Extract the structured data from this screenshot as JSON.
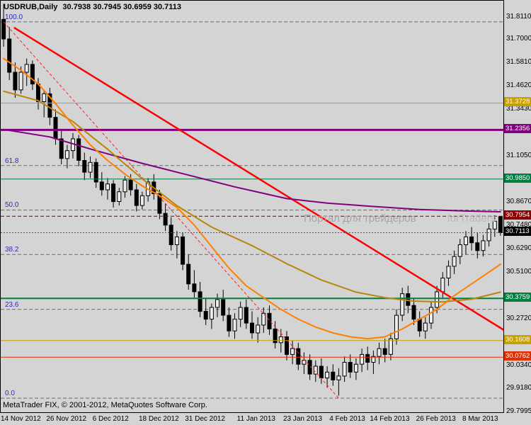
{
  "header": {
    "symbol": "USDRUB,Daily",
    "ohlc": "30.7938 30.7945 30.6959 30.7113"
  },
  "watermark": {
    "line1": "Портал для трейдеров",
    "line2": "forTraders"
  },
  "footer": {
    "copyright": "MetaTrader FIX, © 2001-2012, MetaQuotes Software Corp."
  },
  "chart_data": {
    "type": "candlestick",
    "title": "USDRUB,Daily",
    "symbol": "USDRUB",
    "timeframe": "Daily",
    "ohlc_header": {
      "open": 30.7938,
      "high": 30.7945,
      "low": 30.6959,
      "close": 30.7113
    },
    "ylim": [
      29.795,
      31.895
    ],
    "grid": false,
    "colors": {
      "background": "#D4D4D4",
      "candle_border": "#000000",
      "bull_body": "#EDEDED",
      "bear_body": "#000000",
      "fib_line": "#6B6B6B",
      "fib_label": "#2929CC",
      "current_price_line": "#555555"
    },
    "y_ticks": [
      "31.8110",
      "31.7000",
      "31.5810",
      "31.4620",
      "31.3430",
      "31.1050",
      "30.8670",
      "30.7480",
      "30.6290",
      "30.5100",
      "30.2720",
      "30.0340",
      "29.9180",
      "29.7995"
    ],
    "x_labels": [
      {
        "index": 0,
        "label": "14 Nov 2012"
      },
      {
        "index": 8,
        "label": "26 Nov 2012"
      },
      {
        "index": 16,
        "label": "6 Dec 2012"
      },
      {
        "index": 24,
        "label": "18 Dec 2012"
      },
      {
        "index": 32,
        "label": "31 Dec 2012"
      },
      {
        "index": 41,
        "label": "11 Jan 2013"
      },
      {
        "index": 49,
        "label": "23 Jan 2013"
      },
      {
        "index": 57,
        "label": "4 Feb 2013"
      },
      {
        "index": 64,
        "label": "14 Feb 2013"
      },
      {
        "index": 72,
        "label": "26 Feb 2013"
      },
      {
        "index": 80,
        "label": "8 Mar 2013"
      }
    ],
    "candles": [
      [
        31.8,
        31.88,
        31.66,
        31.7
      ],
      [
        31.7,
        31.76,
        31.49,
        31.53
      ],
      [
        31.53,
        31.58,
        31.4,
        31.44
      ],
      [
        31.44,
        31.56,
        31.42,
        31.53
      ],
      [
        31.53,
        31.6,
        31.46,
        31.57
      ],
      [
        31.57,
        31.59,
        31.44,
        31.47
      ],
      [
        31.47,
        31.5,
        31.34,
        31.38
      ],
      [
        31.38,
        31.44,
        31.3,
        31.42
      ],
      [
        31.42,
        31.45,
        31.26,
        31.3
      ],
      [
        31.3,
        31.34,
        31.16,
        31.19
      ],
      [
        31.19,
        31.24,
        31.06,
        31.09
      ],
      [
        31.09,
        31.16,
        31.04,
        31.13
      ],
      [
        31.13,
        31.22,
        31.09,
        31.19
      ],
      [
        31.19,
        31.21,
        31.05,
        31.08
      ],
      [
        31.08,
        31.12,
        30.98,
        31.02
      ],
      [
        31.02,
        31.1,
        30.99,
        31.07
      ],
      [
        31.07,
        31.09,
        30.94,
        30.97
      ],
      [
        30.97,
        31.02,
        30.9,
        30.93
      ],
      [
        30.93,
        30.99,
        30.88,
        30.96
      ],
      [
        30.96,
        30.98,
        30.84,
        30.87
      ],
      [
        30.87,
        30.94,
        30.85,
        30.92
      ],
      [
        30.92,
        31.0,
        30.89,
        30.98
      ],
      [
        30.98,
        31.01,
        30.9,
        30.93
      ],
      [
        30.93,
        30.96,
        30.82,
        30.85
      ],
      [
        30.85,
        30.92,
        30.83,
        30.9
      ],
      [
        30.9,
        30.99,
        30.87,
        30.97
      ],
      [
        30.97,
        31.01,
        30.88,
        30.91
      ],
      [
        30.91,
        30.93,
        30.78,
        30.81
      ],
      [
        30.81,
        30.86,
        30.72,
        30.75
      ],
      [
        30.75,
        30.79,
        30.62,
        30.65
      ],
      [
        30.65,
        30.72,
        30.58,
        30.69
      ],
      [
        30.69,
        30.71,
        30.52,
        30.55
      ],
      [
        30.55,
        30.6,
        30.42,
        30.45
      ],
      [
        30.45,
        30.52,
        30.38,
        30.41
      ],
      [
        30.41,
        30.46,
        30.28,
        30.31
      ],
      [
        30.31,
        30.38,
        30.24,
        30.27
      ],
      [
        30.27,
        30.35,
        30.22,
        30.33
      ],
      [
        30.33,
        30.4,
        30.28,
        30.37
      ],
      [
        30.37,
        30.42,
        30.26,
        30.29
      ],
      [
        30.29,
        30.33,
        30.18,
        30.21
      ],
      [
        30.21,
        30.3,
        30.17,
        30.27
      ],
      [
        30.27,
        30.36,
        30.23,
        30.33
      ],
      [
        30.33,
        30.37,
        30.22,
        30.25
      ],
      [
        30.25,
        30.31,
        30.17,
        30.2
      ],
      [
        30.2,
        30.28,
        30.15,
        30.24
      ],
      [
        30.24,
        30.33,
        30.2,
        30.3
      ],
      [
        30.3,
        30.34,
        30.19,
        30.22
      ],
      [
        30.22,
        30.26,
        30.12,
        30.15
      ],
      [
        30.15,
        30.22,
        30.1,
        30.18
      ],
      [
        30.18,
        30.21,
        30.06,
        30.09
      ],
      [
        30.09,
        30.16,
        30.04,
        30.12
      ],
      [
        30.12,
        30.15,
        30.01,
        30.04
      ],
      [
        30.04,
        30.1,
        29.99,
        30.06
      ],
      [
        30.06,
        30.09,
        29.96,
        29.99
      ],
      [
        29.99,
        30.06,
        29.95,
        30.03
      ],
      [
        30.03,
        30.07,
        29.94,
        29.97
      ],
      [
        29.97,
        30.03,
        29.92,
        30.0
      ],
      [
        30.0,
        30.04,
        29.93,
        29.96
      ],
      [
        29.96,
        30.02,
        29.88,
        29.98
      ],
      [
        29.98,
        30.08,
        29.95,
        30.05
      ],
      [
        30.05,
        30.09,
        29.97,
        30.0
      ],
      [
        30.0,
        30.07,
        29.96,
        30.04
      ],
      [
        30.04,
        30.12,
        30.0,
        30.09
      ],
      [
        30.09,
        30.13,
        30.01,
        30.05
      ],
      [
        30.05,
        30.11,
        29.99,
        30.08
      ],
      [
        30.08,
        30.15,
        30.04,
        30.12
      ],
      [
        30.12,
        30.17,
        30.05,
        30.09
      ],
      [
        30.09,
        30.2,
        30.06,
        30.17
      ],
      [
        30.17,
        30.32,
        30.14,
        30.29
      ],
      [
        30.29,
        30.43,
        30.26,
        30.4
      ],
      [
        30.4,
        30.44,
        30.3,
        30.34
      ],
      [
        30.34,
        30.38,
        30.24,
        30.27
      ],
      [
        30.27,
        30.31,
        30.18,
        30.21
      ],
      [
        30.21,
        30.28,
        30.17,
        30.25
      ],
      [
        30.25,
        30.36,
        30.22,
        30.33
      ],
      [
        30.33,
        30.44,
        30.3,
        30.41
      ],
      [
        30.41,
        30.51,
        30.38,
        30.48
      ],
      [
        30.48,
        30.57,
        30.44,
        30.54
      ],
      [
        30.54,
        30.62,
        30.5,
        30.59
      ],
      [
        30.59,
        30.68,
        30.55,
        30.65
      ],
      [
        30.65,
        30.72,
        30.6,
        30.69
      ],
      [
        30.69,
        30.74,
        30.62,
        30.66
      ],
      [
        30.66,
        30.71,
        30.58,
        30.62
      ],
      [
        30.62,
        30.7,
        30.59,
        30.67
      ],
      [
        30.67,
        30.76,
        30.64,
        30.73
      ],
      [
        30.73,
        30.8,
        30.69,
        30.77
      ],
      [
        30.7938,
        30.7945,
        30.6959,
        30.7113
      ]
    ],
    "fib_levels": [
      {
        "label": "100.0",
        "price": 31.787
      },
      {
        "label": "61.8",
        "price": 31.054
      },
      {
        "label": "50.0",
        "price": 30.827
      },
      {
        "label": "38.2",
        "price": 30.6
      },
      {
        "label": "23.6",
        "price": 30.32
      },
      {
        "label": "0.0",
        "price": 29.867
      }
    ],
    "h_lines": [
      {
        "name": "gold-level-line-upper",
        "price": 31.3728,
        "color": "#C8A000",
        "width": 1
      },
      {
        "name": "purple-level-line",
        "price": 31.2356,
        "color": "#800080",
        "width": 3
      },
      {
        "name": "green-level-line-upper",
        "price": 30.985,
        "color": "#008040",
        "width": 1
      },
      {
        "name": "maroon-level-line",
        "price": 30.7954,
        "color": "#8B0000",
        "width": 1,
        "dash": "5 3"
      },
      {
        "name": "green-level-line-lower",
        "price": 30.3759,
        "color": "#008040",
        "width": 2
      },
      {
        "name": "gold-level-line-lower",
        "price": 30.1608,
        "color": "#C8A000",
        "width": 1
      },
      {
        "name": "red-level-line",
        "price": 30.0762,
        "color": "#E03000",
        "width": 1
      }
    ],
    "price_badges": [
      {
        "name": "gold-badge-upper",
        "price": 31.3728,
        "label": "31.3728",
        "color": "#C8A000"
      },
      {
        "name": "purple-badge",
        "price": 31.2356,
        "label": "31.2356",
        "color": "#800080"
      },
      {
        "name": "green-badge-upper",
        "price": 30.985,
        "label": "30.9850",
        "color": "#008040"
      },
      {
        "name": "maroon-badge",
        "price": 30.7954,
        "label": "30.7954",
        "color": "#8B0000"
      },
      {
        "name": "current-price-badge",
        "price": 30.7113,
        "label": "30.7113",
        "color": "#000000"
      },
      {
        "name": "green-badge-lower",
        "price": 30.3759,
        "label": "30.3759",
        "color": "#008040"
      },
      {
        "name": "gold-badge-lower",
        "price": 30.1608,
        "label": "30.1608",
        "color": "#C8A000"
      },
      {
        "name": "red-badge",
        "price": 30.0762,
        "label": "30.0762",
        "color": "#E03000"
      }
    ],
    "trend_lines": [
      {
        "name": "downtrend-line",
        "points": [
          [
            1.8,
            31.758
          ],
          [
            87,
            30.207
          ]
        ],
        "color": "#FF0000",
        "width": 2.5
      },
      {
        "name": "fib-baseline-line",
        "points": [
          [
            0,
            31.787
          ],
          [
            58,
            29.867
          ]
        ],
        "color": "#FF2020",
        "width": 1,
        "dash": "4 3"
      }
    ],
    "ma_lines": [
      {
        "name": "purple-slow-ma",
        "color": "#800080",
        "width": 2,
        "points": [
          [
            0,
            31.238
          ],
          [
            8,
            31.2
          ],
          [
            16,
            31.13
          ],
          [
            24,
            31.065
          ],
          [
            32,
            31.005
          ],
          [
            40,
            30.945
          ],
          [
            49,
            30.885
          ],
          [
            56,
            30.862
          ],
          [
            64,
            30.845
          ],
          [
            72,
            30.83
          ],
          [
            80,
            30.822
          ],
          [
            86,
            30.818
          ]
        ]
      },
      {
        "name": "gold-medium-ma",
        "color": "#B8860B",
        "width": 2,
        "points": [
          [
            0,
            31.433
          ],
          [
            6,
            31.385
          ],
          [
            12,
            31.278
          ],
          [
            18,
            31.137
          ],
          [
            24,
            30.986
          ],
          [
            30,
            30.849
          ],
          [
            36,
            30.74
          ],
          [
            43,
            30.645
          ],
          [
            49,
            30.553
          ],
          [
            55,
            30.47
          ],
          [
            61,
            30.408
          ],
          [
            66,
            30.38
          ],
          [
            71,
            30.362
          ],
          [
            76,
            30.358
          ],
          [
            81,
            30.372
          ],
          [
            86,
            30.408
          ]
        ]
      },
      {
        "name": "orange-fast-ma",
        "color": "#FF8000",
        "width": 2,
        "points": [
          [
            0,
            31.6
          ],
          [
            3,
            31.54
          ],
          [
            6,
            31.47
          ],
          [
            9,
            31.37
          ],
          [
            12,
            31.26
          ],
          [
            15,
            31.16
          ],
          [
            18,
            31.08
          ],
          [
            21,
            31.01
          ],
          [
            24,
            30.95
          ],
          [
            27,
            30.9
          ],
          [
            30,
            30.84
          ],
          [
            33,
            30.75
          ],
          [
            36,
            30.64
          ],
          [
            39,
            30.53
          ],
          [
            42,
            30.44
          ],
          [
            45,
            30.38
          ],
          [
            48,
            30.32
          ],
          [
            51,
            30.27
          ],
          [
            54,
            30.23
          ],
          [
            57,
            30.2
          ],
          [
            60,
            30.18
          ],
          [
            63,
            30.17
          ],
          [
            66,
            30.18
          ],
          [
            69,
            30.22
          ],
          [
            72,
            30.27
          ],
          [
            75,
            30.32
          ],
          [
            78,
            30.39
          ],
          [
            81,
            30.45
          ],
          [
            84,
            30.51
          ],
          [
            86,
            30.55
          ]
        ]
      }
    ],
    "current_price": {
      "price": 30.7113,
      "label": "30.7113"
    }
  }
}
